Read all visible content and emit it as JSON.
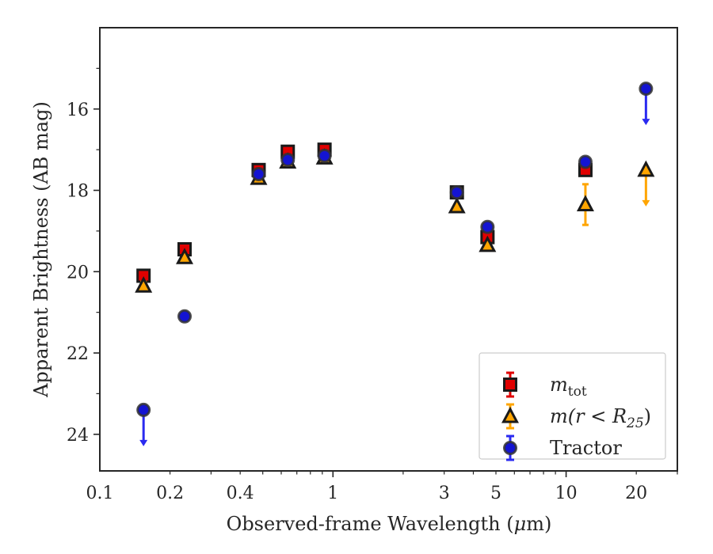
{
  "chart_data": {
    "type": "scatter",
    "xlabel_main": "Observed-frame Wavelength (",
    "xlabel_mu": "μ",
    "xlabel_rest": "m)",
    "ylabel": "Apparent Brightness (AB mag)",
    "xscale": "log",
    "xlim": [
      0.1,
      30
    ],
    "ylim": [
      24.9,
      14.0
    ],
    "y_inverted": true,
    "grid": false,
    "legend_position": "lower-right",
    "x_ticks": [
      {
        "value": 0.1,
        "label": "0.1"
      },
      {
        "value": 0.2,
        "label": "0.2"
      },
      {
        "value": 0.4,
        "label": "0.4"
      },
      {
        "value": 1,
        "label": "1"
      },
      {
        "value": 3,
        "label": "3"
      },
      {
        "value": 5,
        "label": "5"
      },
      {
        "value": 10,
        "label": "10"
      },
      {
        "value": 20,
        "label": "20"
      }
    ],
    "y_ticks": [
      {
        "value": 16,
        "label": "16"
      },
      {
        "value": 18,
        "label": "18"
      },
      {
        "value": 20,
        "label": "20"
      },
      {
        "value": 22,
        "label": "22"
      },
      {
        "value": 24,
        "label": "24"
      }
    ],
    "series": [
      {
        "name": "m_tot",
        "legend_main": "m",
        "legend_sub": "tot",
        "marker": "square",
        "face_color": "#e00000",
        "error_color": "#e00000",
        "points": [
          {
            "x": 0.154,
            "y": 20.1,
            "err": 0.05
          },
          {
            "x": 0.231,
            "y": 19.45,
            "err": 0.05
          },
          {
            "x": 0.48,
            "y": 17.5,
            "err": 0.05
          },
          {
            "x": 0.64,
            "y": 17.05,
            "err": 0.05
          },
          {
            "x": 0.92,
            "y": 17.0,
            "err": 0.05
          },
          {
            "x": 3.4,
            "y": 18.05,
            "err": 0.05
          },
          {
            "x": 4.6,
            "y": 19.15,
            "err": 0.05
          },
          {
            "x": 12.1,
            "y": 17.5,
            "err": 0.05
          }
        ],
        "upper_limits": []
      },
      {
        "name": "m(r < R25)",
        "legend_main": "m(r < R",
        "legend_sub": "25",
        "legend_end": ")",
        "marker": "triangle",
        "face_color": "#ffa500",
        "error_color": "#ffa500",
        "points": [
          {
            "x": 0.154,
            "y": 20.35,
            "err": 0.1
          },
          {
            "x": 0.231,
            "y": 19.65,
            "err": 0.05
          },
          {
            "x": 0.48,
            "y": 17.7,
            "err": 0.05
          },
          {
            "x": 0.64,
            "y": 17.3,
            "err": 0.05
          },
          {
            "x": 0.92,
            "y": 17.2,
            "err": 0.05
          },
          {
            "x": 3.4,
            "y": 18.4,
            "err": 0.05
          },
          {
            "x": 4.6,
            "y": 19.35,
            "err": 0.05
          },
          {
            "x": 12.1,
            "y": 18.35,
            "err": 0.5
          }
        ],
        "upper_limits": [
          {
            "x": 22.0,
            "y": 17.5
          }
        ]
      },
      {
        "name": "Tractor",
        "legend_main": "Tractor",
        "marker": "circle",
        "face_color": "#1414d2",
        "error_color": "#2a2af0",
        "points": [
          {
            "x": 0.231,
            "y": 21.1,
            "err": 0.05
          },
          {
            "x": 0.48,
            "y": 17.6,
            "err": 0.05
          },
          {
            "x": 0.64,
            "y": 17.25,
            "err": 0.05
          },
          {
            "x": 0.92,
            "y": 17.15,
            "err": 0.05
          },
          {
            "x": 3.4,
            "y": 18.05,
            "err": 0.05
          },
          {
            "x": 4.6,
            "y": 18.9,
            "err": 0.05
          },
          {
            "x": 12.1,
            "y": 17.3,
            "err": 0.05
          }
        ],
        "upper_limits": [
          {
            "x": 0.154,
            "y": 23.4
          },
          {
            "x": 22.0,
            "y": 15.5
          }
        ]
      }
    ]
  }
}
